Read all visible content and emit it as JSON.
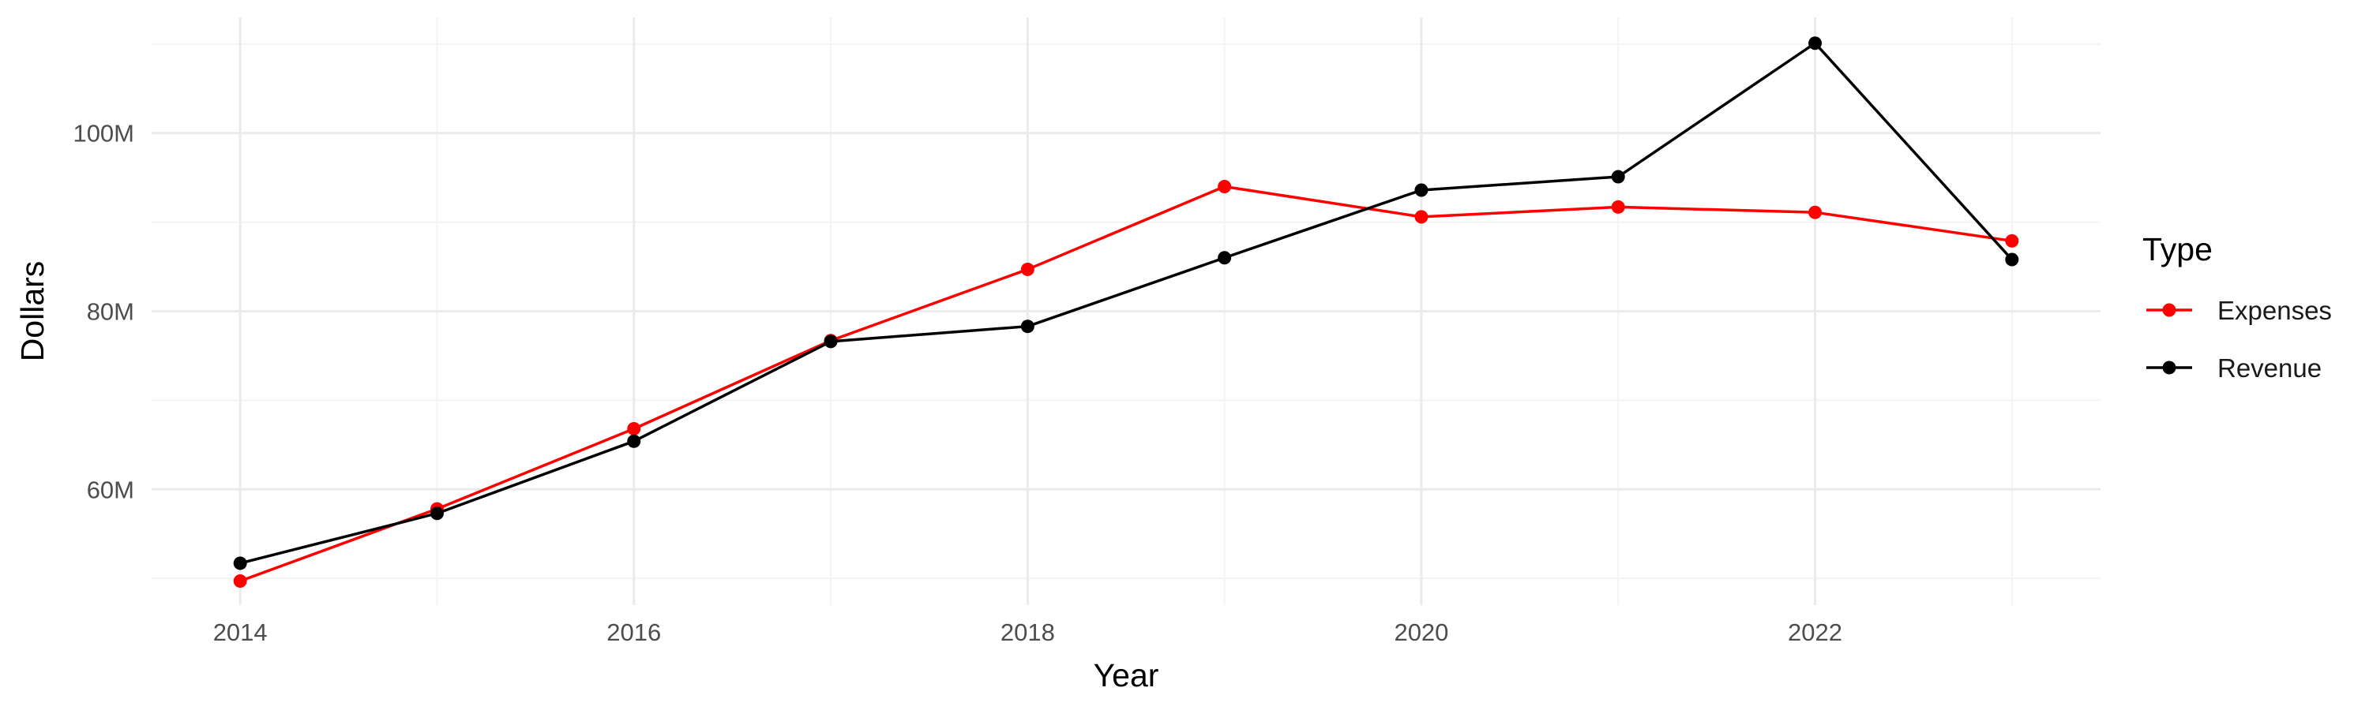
{
  "chart_data": {
    "type": "line",
    "title": "",
    "xlabel": "Year",
    "ylabel": "Dollars",
    "x": [
      2014,
      2015,
      2016,
      2017,
      2018,
      2019,
      2020,
      2021,
      2022,
      2023
    ],
    "xlim": [
      2013.55,
      2023.45
    ],
    "x_ticks": [
      2014,
      2016,
      2018,
      2020,
      2022
    ],
    "x_tick_labels": [
      "2014",
      "2016",
      "2018",
      "2020",
      "2022"
    ],
    "ylim": [
      47000000,
      113000000
    ],
    "y_ticks": [
      60000000,
      80000000,
      100000000
    ],
    "y_tick_labels": [
      "60M",
      "80M",
      "100M"
    ],
    "grid": true,
    "legend": {
      "title": "Type",
      "position": "right"
    },
    "series": [
      {
        "name": "Expenses",
        "color": "#ff0000",
        "values": [
          49700000,
          57800000,
          66800000,
          76700000,
          84700000,
          94000000,
          90600000,
          91700000,
          91100000,
          87900000
        ]
      },
      {
        "name": "Revenue",
        "color": "#000000",
        "values": [
          51700000,
          57300000,
          65400000,
          76600000,
          78300000,
          86000000,
          93600000,
          95100000,
          110100000,
          85800000
        ]
      }
    ]
  }
}
